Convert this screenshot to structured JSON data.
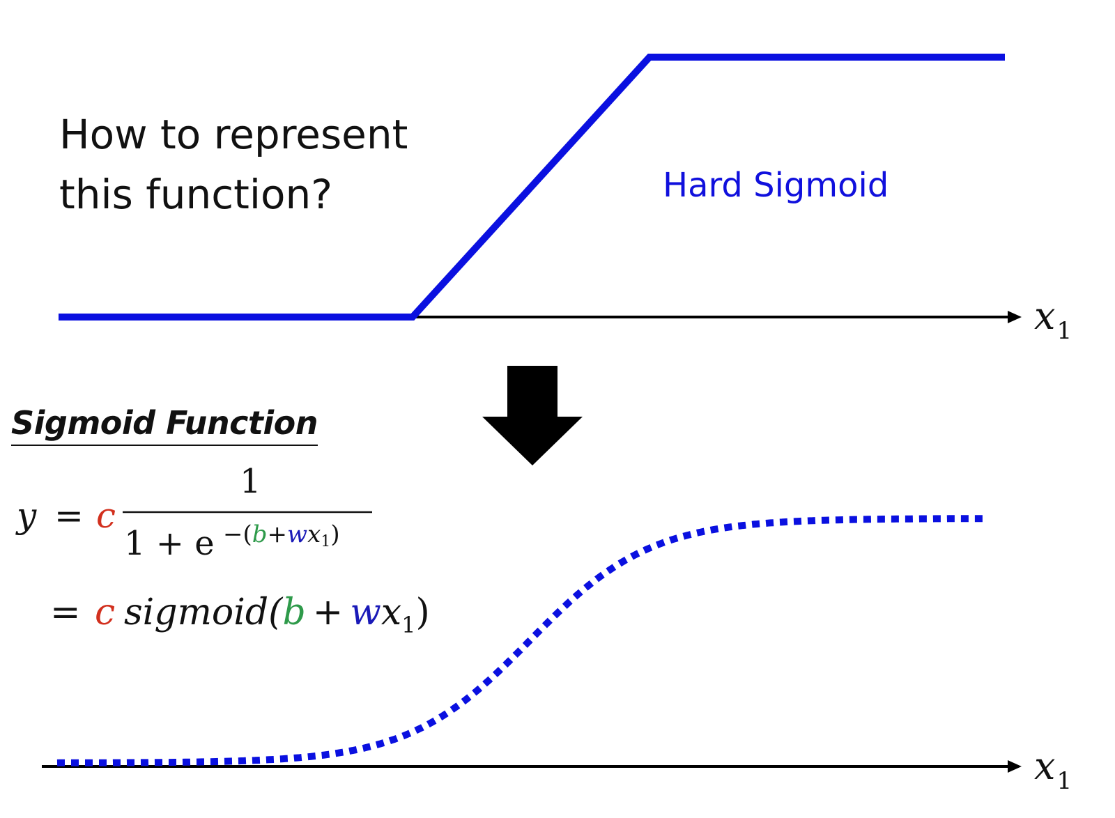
{
  "question": {
    "line1": "How to represent",
    "line2": "this function?"
  },
  "hard_sigmoid_label": "Hard Sigmoid",
  "axis_label": "x",
  "axis_subscript": "1",
  "sigmoid_heading": "Sigmoid Function",
  "formula": {
    "y": "y",
    "eq": "=",
    "c": "c",
    "numerator": "1",
    "denominator_prefix": "1 + e",
    "exp_minus": "−(",
    "exp_b": "b",
    "exp_plus": "+",
    "exp_w": "w",
    "exp_x": "x",
    "exp_sub": "1",
    "exp_close": ")",
    "line2_eq": "=",
    "line2_c": "c",
    "line2_func": "sigmoid(",
    "line2_b": "b",
    "line2_plus": "+",
    "line2_w": "w",
    "line2_x": "x",
    "line2_sub": "1",
    "line2_close": ")"
  },
  "colors": {
    "curve_blue": "#0a10e0",
    "label_blue": "#1010dd",
    "c_red": "#d2301e",
    "b_green": "#2e9a4a",
    "w_blue": "#1a1ab8",
    "text": "#111111",
    "axis": "#000000"
  },
  "icons": {
    "down_arrow": "down-arrow-icon"
  }
}
